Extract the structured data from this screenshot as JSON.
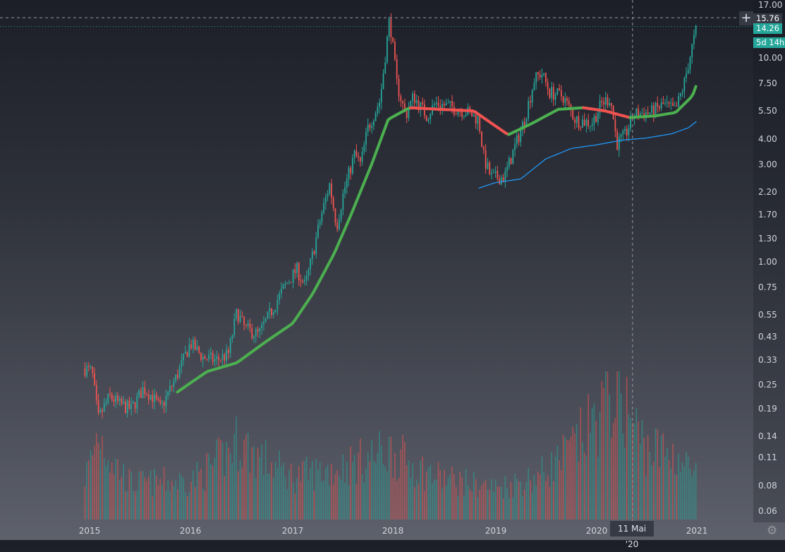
{
  "chart_data": {
    "type": "candlestick",
    "scale": "log",
    "grid": false,
    "y_ticks": [
      17.0,
      15.76,
      14.26,
      10.0,
      7.5,
      5.5,
      4.0,
      3.0,
      2.2,
      1.7,
      1.3,
      1.0,
      0.75,
      0.55,
      0.43,
      0.33,
      0.25,
      0.19,
      0.14,
      0.11,
      0.08,
      0.06
    ],
    "y_tick_labels": [
      "17.00",
      "15.76",
      "14.26",
      "10.00",
      "7.50",
      "5.50",
      "4.00",
      "3.00",
      "2.20",
      "1.70",
      "1.30",
      "1.00",
      "0.75",
      "0.55",
      "0.43",
      "0.33",
      "0.25",
      "0.19",
      "0.14",
      "0.11",
      "0.08",
      "0.06"
    ],
    "x_ticks": [
      "2015",
      "2016",
      "2017",
      "2018",
      "2019",
      "2020",
      "2021"
    ],
    "price_path": [
      [
        "2014-12-15",
        0.3
      ],
      [
        "2015-01-10",
        0.29
      ],
      [
        "2015-02-01",
        0.17
      ],
      [
        "2015-03-15",
        0.22
      ],
      [
        "2015-04-20",
        0.2
      ],
      [
        "2015-06-01",
        0.19
      ],
      [
        "2015-07-15",
        0.24
      ],
      [
        "2015-08-15",
        0.22
      ],
      [
        "2015-09-15",
        0.19
      ],
      [
        "2015-11-15",
        0.28
      ],
      [
        "2016-01-01",
        0.4
      ],
      [
        "2016-02-15",
        0.34
      ],
      [
        "2016-04-01",
        0.33
      ],
      [
        "2016-05-15",
        0.35
      ],
      [
        "2016-06-15",
        0.57
      ],
      [
        "2016-07-15",
        0.47
      ],
      [
        "2016-09-01",
        0.44
      ],
      [
        "2016-10-15",
        0.57
      ],
      [
        "2016-12-01",
        0.75
      ],
      [
        "2017-01-15",
        0.92
      ],
      [
        "2017-02-15",
        0.76
      ],
      [
        "2017-03-15",
        1.1
      ],
      [
        "2017-04-15",
        1.7
      ],
      [
        "2017-05-15",
        2.4
      ],
      [
        "2017-06-10",
        1.5
      ],
      [
        "2017-07-05",
        2.2
      ],
      [
        "2017-08-15",
        3.4
      ],
      [
        "2017-09-05",
        3.0
      ],
      [
        "2017-10-01",
        4.5
      ],
      [
        "2017-11-15",
        6.2
      ],
      [
        "2017-12-20",
        15.76
      ],
      [
        "2018-01-15",
        7.5
      ],
      [
        "2018-02-15",
        5.2
      ],
      [
        "2018-03-15",
        6.5
      ],
      [
        "2018-05-01",
        5.2
      ],
      [
        "2018-06-01",
        6.0
      ],
      [
        "2018-07-15",
        5.8
      ],
      [
        "2018-09-15",
        5.5
      ],
      [
        "2018-11-01",
        5.0
      ],
      [
        "2018-11-20",
        3.2
      ],
      [
        "2018-12-15",
        2.6
      ],
      [
        "2019-02-01",
        2.6
      ],
      [
        "2019-03-15",
        3.8
      ],
      [
        "2019-04-15",
        5.0
      ],
      [
        "2019-05-20",
        7.8
      ],
      [
        "2019-06-15",
        8.5
      ],
      [
        "2019-07-15",
        6.8
      ],
      [
        "2019-09-01",
        6.5
      ],
      [
        "2019-10-15",
        5.0
      ],
      [
        "2019-12-15",
        4.8
      ],
      [
        "2020-01-20",
        6.0
      ],
      [
        "2020-02-20",
        6.4
      ],
      [
        "2020-03-15",
        3.8
      ],
      [
        "2020-04-15",
        4.2
      ],
      [
        "2020-05-15",
        5.3
      ],
      [
        "2020-07-15",
        5.4
      ],
      [
        "2020-09-01",
        5.9
      ],
      [
        "2020-10-15",
        5.5
      ],
      [
        "2020-11-15",
        7.5
      ],
      [
        "2020-12-15",
        11.5
      ],
      [
        "2021-01-01",
        14.26
      ]
    ],
    "ma_long": [
      [
        "2015-11-15",
        0.23
      ],
      [
        "2016-03-01",
        0.29
      ],
      [
        "2016-06-15",
        0.32
      ],
      [
        "2016-10-01",
        0.41
      ],
      [
        "2017-01-01",
        0.5
      ],
      [
        "2017-03-15",
        0.7
      ],
      [
        "2017-06-01",
        1.1
      ],
      [
        "2017-08-01",
        1.7
      ],
      [
        "2017-10-15",
        3.0
      ],
      [
        "2017-12-15",
        5.0
      ],
      [
        "2018-03-01",
        5.7
      ],
      [
        "2018-06-15",
        5.6
      ],
      [
        "2018-10-15",
        5.5
      ],
      [
        "2018-12-15",
        4.8
      ],
      [
        "2019-02-15",
        4.2
      ],
      [
        "2019-05-15",
        4.8
      ],
      [
        "2019-08-15",
        5.6
      ],
      [
        "2019-11-15",
        5.7
      ],
      [
        "2020-02-01",
        5.5
      ],
      [
        "2020-05-01",
        5.1
      ],
      [
        "2020-08-01",
        5.2
      ],
      [
        "2020-10-15",
        5.4
      ],
      [
        "2020-12-15",
        6.5
      ],
      [
        "2021-01-01",
        7.5
      ]
    ],
    "ma_blue": [
      [
        "2018-11-01",
        2.3
      ],
      [
        "2019-01-01",
        2.45
      ],
      [
        "2019-04-01",
        2.55
      ],
      [
        "2019-07-01",
        3.2
      ],
      [
        "2019-10-01",
        3.6
      ],
      [
        "2020-01-01",
        3.75
      ],
      [
        "2020-04-01",
        3.95
      ],
      [
        "2020-07-01",
        4.05
      ],
      [
        "2020-10-01",
        4.25
      ],
      [
        "2020-12-01",
        4.55
      ],
      [
        "2021-01-01",
        4.9
      ]
    ],
    "volume_path": [
      [
        "2014-12-15",
        0.3
      ],
      [
        "2015-02-01",
        0.62
      ],
      [
        "2015-06-01",
        0.25
      ],
      [
        "2016-01-01",
        0.27
      ],
      [
        "2016-06-20",
        0.55
      ],
      [
        "2017-01-01",
        0.3
      ],
      [
        "2017-06-01",
        0.35
      ],
      [
        "2017-12-20",
        0.48
      ],
      [
        "2018-06-01",
        0.3
      ],
      [
        "2019-01-01",
        0.22
      ],
      [
        "2019-06-01",
        0.3
      ],
      [
        "2020-03-15",
        0.95
      ],
      [
        "2020-07-01",
        0.5
      ],
      [
        "2020-10-15",
        0.45
      ],
      [
        "2021-01-01",
        0.3
      ]
    ],
    "colors": {
      "up": "#26a69a",
      "down": "#ef5350",
      "ma_up": "#4caf50",
      "ma_down": "#ef5350",
      "ma_blue": "#2196f3"
    }
  },
  "axis": {
    "last_price_label": "15.76",
    "current_price_label": "14.26",
    "countdown_label": "5d 14h",
    "crosshair_date_label": "11 Mai '20",
    "crosshair_date": "2020-05-11"
  },
  "icons": {
    "crosshair": "plus-icon",
    "settings": "gear-icon"
  }
}
